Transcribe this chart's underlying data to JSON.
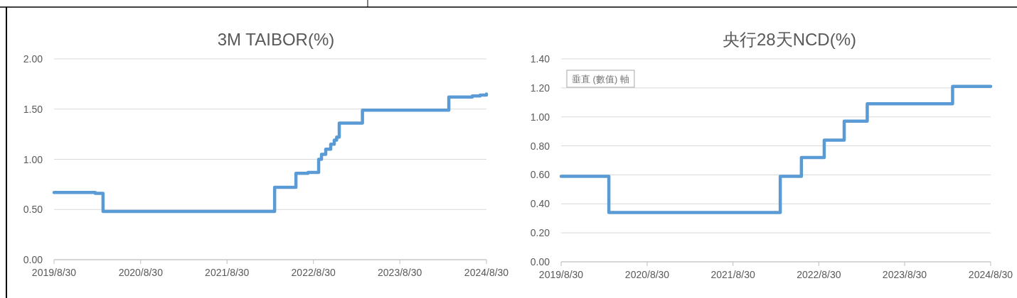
{
  "chart_data": [
    {
      "type": "step",
      "title": "3M TAIBOR(%)",
      "grid": "y",
      "xlim": [
        "2019-08-30",
        "2024-08-30"
      ],
      "xticks": [
        {
          "value": "2019-08-30",
          "label": "2019/8/30"
        },
        {
          "value": "2020-08-30",
          "label": "2020/8/30"
        },
        {
          "value": "2021-08-30",
          "label": "2021/8/30"
        },
        {
          "value": "2022-08-30",
          "label": "2022/8/30"
        },
        {
          "value": "2023-08-30",
          "label": "2023/8/30"
        },
        {
          "value": "2024-08-30",
          "label": "2024/8/30"
        }
      ],
      "ylim": [
        0,
        2
      ],
      "yticks": [
        {
          "value": 0,
          "label": "0.00"
        },
        {
          "value": 0.5,
          "label": "0.50"
        },
        {
          "value": 1,
          "label": "1.00"
        },
        {
          "value": 1.5,
          "label": "1.50"
        },
        {
          "value": 2,
          "label": "2.00"
        }
      ],
      "x": [
        "2019-08-30",
        "2020-02-20",
        "2020-03-24",
        "2022-03-19",
        "2022-06-17",
        "2022-08-07",
        "2022-09-21",
        "2022-10-03",
        "2022-10-21",
        "2022-11-11",
        "2022-11-26",
        "2022-12-06",
        "2022-12-17",
        "2023-03-25",
        "2024-03-24",
        "2024-07-01",
        "2024-08-03",
        "2024-08-30"
      ],
      "series": [
        {
          "color": "#5b9bd5",
          "values": [
            0.67,
            0.66,
            0.48,
            0.72,
            0.86,
            0.87,
            1.0,
            1.05,
            1.1,
            1.15,
            1.19,
            1.22,
            1.36,
            1.49,
            1.62,
            1.63,
            1.64,
            1.65
          ]
        }
      ]
    },
    {
      "type": "step",
      "title": "央行28天NCD(%)",
      "grid": "y",
      "xlim": [
        "2019-08-30",
        "2024-08-30"
      ],
      "xticks": [
        {
          "value": "2019-08-30",
          "label": "2019/8/30"
        },
        {
          "value": "2020-08-30",
          "label": "2020/8/30"
        },
        {
          "value": "2021-08-30",
          "label": "2021/8/30"
        },
        {
          "value": "2022-08-30",
          "label": "2022/8/30"
        },
        {
          "value": "2023-08-30",
          "label": "2023/8/30"
        },
        {
          "value": "2024-08-30",
          "label": "2024/8/30"
        }
      ],
      "ylim": [
        0,
        1.4
      ],
      "yticks": [
        {
          "value": 0,
          "label": "0.00"
        },
        {
          "value": 0.2,
          "label": "0.20"
        },
        {
          "value": 0.4,
          "label": "0.40"
        },
        {
          "value": 0.6,
          "label": "0.60"
        },
        {
          "value": 0.8,
          "label": "0.80"
        },
        {
          "value": 1,
          "label": "1.00"
        },
        {
          "value": 1.2,
          "label": "1.20"
        },
        {
          "value": 1.4,
          "label": "1.40"
        }
      ],
      "x": [
        "2019-08-30",
        "2020-03-20",
        "2022-03-19",
        "2022-06-17",
        "2022-09-22",
        "2022-12-16",
        "2023-03-24",
        "2024-03-21",
        "2024-08-30"
      ],
      "series": [
        {
          "color": "#5b9bd5",
          "values": [
            0.59,
            0.34,
            0.59,
            0.72,
            0.84,
            0.97,
            1.09,
            1.21,
            1.21
          ]
        }
      ],
      "annotations": [
        "垂直 (數值) 軸"
      ]
    }
  ]
}
